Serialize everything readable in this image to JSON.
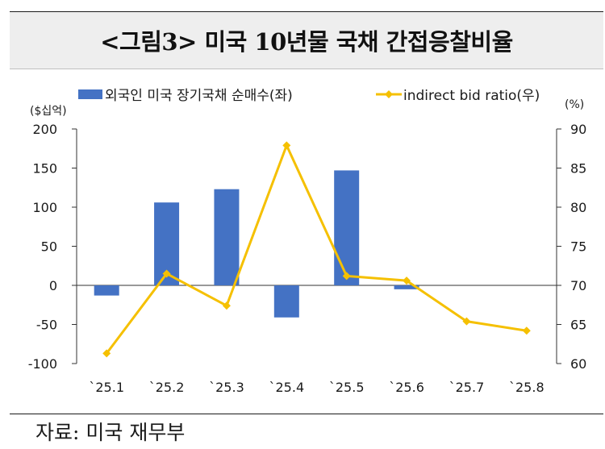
{
  "title": "<그림3> 미국 10년물 국채 간접응찰비율",
  "source": "자료: 미국 재무부",
  "chart_data": {
    "type": "bar",
    "categories": [
      "`25.1",
      "`25.2",
      "`25.3",
      "`25.4",
      "`25.5",
      "`25.6",
      "`25.7",
      "`25.8"
    ],
    "series": [
      {
        "name": "외국인 미국 장기국채 순매수(좌)",
        "kind": "bar",
        "axis": "left",
        "color": "#4472c4",
        "values": [
          -13,
          106,
          123,
          -41,
          147,
          -5,
          null,
          null
        ]
      },
      {
        "name": "indirect bid ratio(우)",
        "kind": "line",
        "axis": "right",
        "color": "#f5c000",
        "values": [
          61.3,
          71.5,
          67.4,
          87.9,
          71.2,
          70.6,
          65.4,
          64.2
        ]
      }
    ],
    "left_axis": {
      "label": "($십억)",
      "min": -100,
      "max": 200,
      "ticks": [
        -100,
        -50,
        0,
        50,
        100,
        150,
        200
      ]
    },
    "right_axis": {
      "label": "(%)",
      "min": 60,
      "max": 90,
      "ticks": [
        60,
        65,
        70,
        75,
        80,
        85,
        90
      ]
    },
    "legend_position": "top",
    "grid": false
  }
}
